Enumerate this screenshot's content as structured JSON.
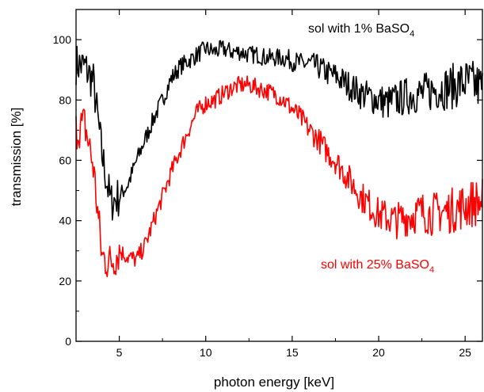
{
  "chart_data": {
    "type": "line",
    "xlabel": "photon energy [keV]",
    "ylabel": "transmission [%]",
    "xlim": [
      2.5,
      26
    ],
    "ylim": [
      0,
      110
    ],
    "x_ticks": [
      5,
      10,
      15,
      20,
      25
    ],
    "y_ticks": [
      0,
      20,
      40,
      60,
      80,
      100
    ],
    "grid": false,
    "noise_amplitude_note": "",
    "series": [
      {
        "name": "sol with 1% BaSO4",
        "color": "#000000",
        "x": [
          2.5,
          3.0,
          3.5,
          4.0,
          4.5,
          5.0,
          5.5,
          6.0,
          6.5,
          7.0,
          7.5,
          8.0,
          8.5,
          9.0,
          9.5,
          10.0,
          10.5,
          11.0,
          11.5,
          12.0,
          12.5,
          13.0,
          13.5,
          14.0,
          14.5,
          15.0,
          15.5,
          16.0,
          16.5,
          17.0,
          17.5,
          18.0,
          18.5,
          19.0,
          19.5,
          20.0,
          20.5,
          21.0,
          21.5,
          22.0,
          22.5,
          23.0,
          23.5,
          24.0,
          24.5,
          25.0,
          25.5,
          26.0
        ],
        "y": [
          92,
          91,
          86,
          62,
          46,
          48,
          52,
          60,
          67,
          74,
          80,
          87,
          91,
          93,
          95,
          97,
          96,
          97,
          96,
          96,
          95,
          95,
          94,
          94,
          94,
          93,
          92,
          92,
          91,
          89,
          88,
          86,
          84,
          82,
          81,
          80,
          79,
          80,
          81,
          82,
          82,
          83,
          84,
          84,
          85,
          86,
          85,
          84
        ]
      },
      {
        "name": "sol with 25% BaSO4",
        "color": "#ff0000",
        "x": [
          2.5,
          3.0,
          3.5,
          4.0,
          4.5,
          5.0,
          5.5,
          6.0,
          6.5,
          7.0,
          7.5,
          8.0,
          8.5,
          9.0,
          9.5,
          10.0,
          10.5,
          11.0,
          11.5,
          12.0,
          12.5,
          13.0,
          13.5,
          14.0,
          14.5,
          15.0,
          15.5,
          16.0,
          16.5,
          17.0,
          17.5,
          18.0,
          18.5,
          19.0,
          19.5,
          20.0,
          20.5,
          21.0,
          21.5,
          22.0,
          22.5,
          23.0,
          23.5,
          24.0,
          24.5,
          25.0,
          25.5,
          26.0
        ],
        "y": [
          70,
          72,
          58,
          28,
          26,
          30,
          28,
          27,
          32,
          40,
          48,
          56,
          63,
          70,
          76,
          79,
          80,
          82,
          84,
          85,
          85,
          84,
          83,
          82,
          80,
          77,
          74,
          70,
          67,
          63,
          60,
          56,
          52,
          48,
          45,
          42,
          41,
          40,
          41,
          42,
          43,
          42,
          43,
          43,
          44,
          45,
          46,
          46
        ]
      }
    ],
    "annotations": [
      {
        "text": "sol with 1% BaSO",
        "subscript": "4",
        "color": "#000000"
      },
      {
        "text": "sol with 25% BaSO",
        "subscript": "4",
        "color": "#ff0000"
      }
    ]
  }
}
